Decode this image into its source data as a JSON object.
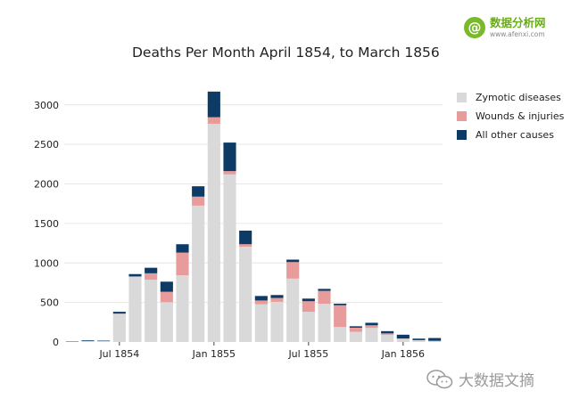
{
  "logo": {
    "name": "数据分析网",
    "url": "www.afenxi.com",
    "badge": "@"
  },
  "watermark": {
    "text": "大数据文摘"
  },
  "colors": {
    "zymotic": "#d9d9d9",
    "wounds": "#e89b9b",
    "other": "#0d3b66",
    "grid": "#e6e6e6"
  },
  "chart_data": {
    "type": "bar",
    "stacked": true,
    "title": "Deaths Per Month April 1854, to March 1856",
    "xlabel": "",
    "ylabel": "",
    "ylim": [
      0,
      3200
    ],
    "yticks": [
      0,
      500,
      1000,
      1500,
      2000,
      2500,
      3000
    ],
    "xticks": [
      {
        "label": "Jul 1854",
        "index": 3
      },
      {
        "label": "Jan 1855",
        "index": 9
      },
      {
        "label": "Jul 1855",
        "index": 15
      },
      {
        "label": "Jan 1856",
        "index": 21
      }
    ],
    "legend_position": "right",
    "categories": [
      "Apr 1854",
      "May 1854",
      "Jun 1854",
      "Jul 1854",
      "Aug 1854",
      "Sep 1854",
      "Oct 1854",
      "Nov 1854",
      "Dec 1854",
      "Jan 1855",
      "Feb 1855",
      "Mar 1855",
      "Apr 1855",
      "May 1855",
      "Jun 1855",
      "Jul 1855",
      "Aug 1855",
      "Sep 1855",
      "Oct 1855",
      "Nov 1855",
      "Dec 1855",
      "Jan 1856",
      "Feb 1856",
      "Mar 1856"
    ],
    "series": [
      {
        "name": "Zymotic diseases",
        "color_key": "zymotic",
        "values": [
          1,
          12,
          11,
          359,
          828,
          788,
          503,
          844,
          1725,
          2761,
          2120,
          1205,
          477,
          508,
          802,
          382,
          483,
          189,
          128,
          178,
          91,
          42,
          24,
          15
        ]
      },
      {
        "name": "Wounds & injuries",
        "color_key": "wounds",
        "values": [
          0,
          0,
          0,
          0,
          1,
          81,
          132,
          287,
          114,
          83,
          42,
          32,
          48,
          49,
          209,
          134,
          164,
          276,
          53,
          33,
          18,
          2,
          0,
          0
        ]
      },
      {
        "name": "All other causes",
        "color_key": "other",
        "values": [
          5,
          9,
          6,
          23,
          30,
          70,
          128,
          106,
          131,
          324,
          361,
          172,
          57,
          37,
          31,
          33,
          25,
          20,
          18,
          32,
          28,
          48,
          19,
          35
        ]
      }
    ]
  }
}
